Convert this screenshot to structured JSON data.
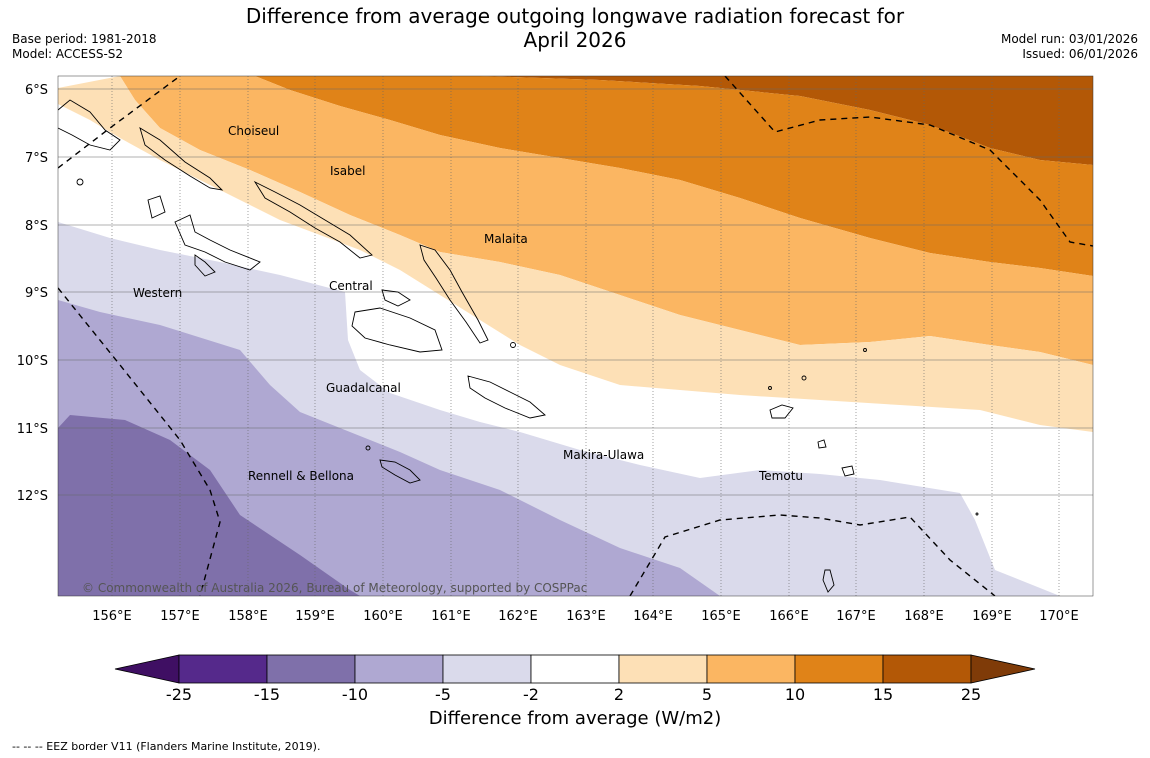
{
  "title": {
    "line1": "Difference from average outgoing longwave radiation forecast for",
    "line2": "April 2026"
  },
  "meta": {
    "base_period": "Base period: 1981-2018",
    "model": "Model: ACCESS-S2",
    "model_run": "Model run: 03/01/2026",
    "issued": "Issued: 06/01/2026"
  },
  "map": {
    "lat_labels": [
      "6°S",
      "7°S",
      "8°S",
      "9°S",
      "10°S",
      "11°S",
      "12°S"
    ],
    "lon_labels": [
      "156°E",
      "157°E",
      "158°E",
      "159°E",
      "160°E",
      "161°E",
      "162°E",
      "163°E",
      "164°E",
      "165°E",
      "166°E",
      "167°E",
      "168°E",
      "169°E",
      "170°E"
    ],
    "regions": [
      "Choiseul",
      "Isabel",
      "Malaita",
      "Western",
      "Central",
      "Guadalcanal",
      "Makira-Ulawa",
      "Rennell & Bellona",
      "Temotu"
    ],
    "copyright": "© Commonwealth of Australia 2026, Bureau of Meteorology, supported by COSPPac"
  },
  "colorbar": {
    "ticks": [
      "-25",
      "-15",
      "-10",
      "-5",
      "-2",
      "2",
      "5",
      "10",
      "15",
      "25"
    ],
    "colors": [
      "#3f0f63",
      "#55298b",
      "#7f70aa",
      "#afa8d2",
      "#dadaeb",
      "#ffffff",
      "#fde0b6",
      "#fbb662",
      "#e08318",
      "#b35806",
      "#7f3b08"
    ],
    "label": "Difference from average (W/m2)"
  },
  "footnote": "--  --  -- EEZ border V11 (Flanders Marine Institute, 2019)."
}
